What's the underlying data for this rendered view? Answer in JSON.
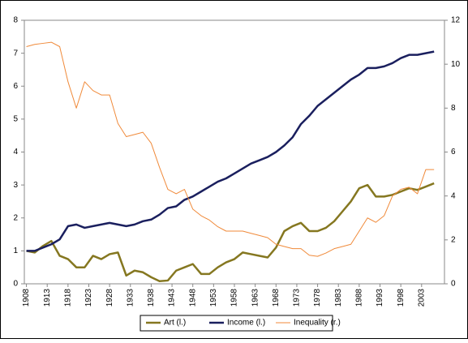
{
  "chart_data": {
    "type": "line",
    "x": [
      1908,
      1910,
      1912,
      1914,
      1916,
      1918,
      1920,
      1922,
      1924,
      1926,
      1928,
      1930,
      1932,
      1934,
      1936,
      1938,
      1940,
      1942,
      1944,
      1946,
      1948,
      1950,
      1952,
      1954,
      1956,
      1958,
      1960,
      1962,
      1964,
      1966,
      1968,
      1970,
      1972,
      1974,
      1976,
      1978,
      1980,
      1982,
      1984,
      1986,
      1988,
      1990,
      1992,
      1994,
      1996,
      1998,
      2000,
      2002,
      2004,
      2006
    ],
    "series": [
      {
        "name": "Art (l.)",
        "color": "#857720",
        "axis": "y",
        "values": [
          1.0,
          0.95,
          1.15,
          1.3,
          0.85,
          0.75,
          0.5,
          0.5,
          0.85,
          0.75,
          0.9,
          0.95,
          0.25,
          0.4,
          0.35,
          0.2,
          0.08,
          0.1,
          0.4,
          0.5,
          0.6,
          0.3,
          0.3,
          0.5,
          0.65,
          0.75,
          0.95,
          0.9,
          0.85,
          0.8,
          1.1,
          1.6,
          1.75,
          1.85,
          1.6,
          1.6,
          1.7,
          1.9,
          2.2,
          2.5,
          2.9,
          3.0,
          2.65,
          2.65,
          2.7,
          2.8,
          2.9,
          2.85,
          2.95,
          3.05
        ]
      },
      {
        "name": "Income (l.)",
        "color": "#1a1f5e",
        "axis": "y",
        "values": [
          1.0,
          1.0,
          1.1,
          1.2,
          1.35,
          1.75,
          1.8,
          1.7,
          1.75,
          1.8,
          1.85,
          1.8,
          1.75,
          1.8,
          1.9,
          1.95,
          2.1,
          2.3,
          2.35,
          2.55,
          2.65,
          2.8,
          2.95,
          3.1,
          3.2,
          3.35,
          3.5,
          3.65,
          3.75,
          3.85,
          4.0,
          4.2,
          4.45,
          4.85,
          5.1,
          5.4,
          5.6,
          5.8,
          6.0,
          6.2,
          6.35,
          6.55,
          6.55,
          6.6,
          6.7,
          6.85,
          6.95,
          6.95,
          7.0,
          7.05
        ]
      },
      {
        "name": "Inequality (r.)",
        "color": "#f08a3a",
        "axis": "y2",
        "values": [
          10.8,
          10.9,
          10.95,
          11.0,
          10.8,
          9.2,
          8.0,
          9.2,
          8.8,
          8.6,
          8.6,
          7.3,
          6.7,
          6.8,
          6.9,
          6.4,
          5.3,
          4.3,
          4.1,
          4.3,
          3.4,
          3.1,
          2.9,
          2.6,
          2.4,
          2.4,
          2.4,
          2.3,
          2.2,
          2.1,
          1.8,
          1.7,
          1.6,
          1.6,
          1.3,
          1.25,
          1.4,
          1.6,
          1.7,
          1.8,
          2.4,
          3.0,
          2.8,
          3.1,
          4.0,
          4.3,
          4.4,
          4.1,
          5.2,
          5.2
        ]
      }
    ],
    "xlim": [
      1907.5,
      2008.5
    ],
    "xticks": [
      1908,
      1913,
      1918,
      1923,
      1928,
      1933,
      1938,
      1943,
      1948,
      1953,
      1958,
      1963,
      1968,
      1973,
      1978,
      1983,
      1988,
      1993,
      1998,
      2003
    ],
    "ylim": [
      0,
      8
    ],
    "yticks": [
      0,
      1,
      2,
      3,
      4,
      5,
      6,
      7,
      8
    ],
    "y2lim": [
      0,
      12
    ],
    "y2ticks": [
      0,
      2,
      4,
      6,
      8,
      10,
      12
    ],
    "legend": "bottom"
  }
}
